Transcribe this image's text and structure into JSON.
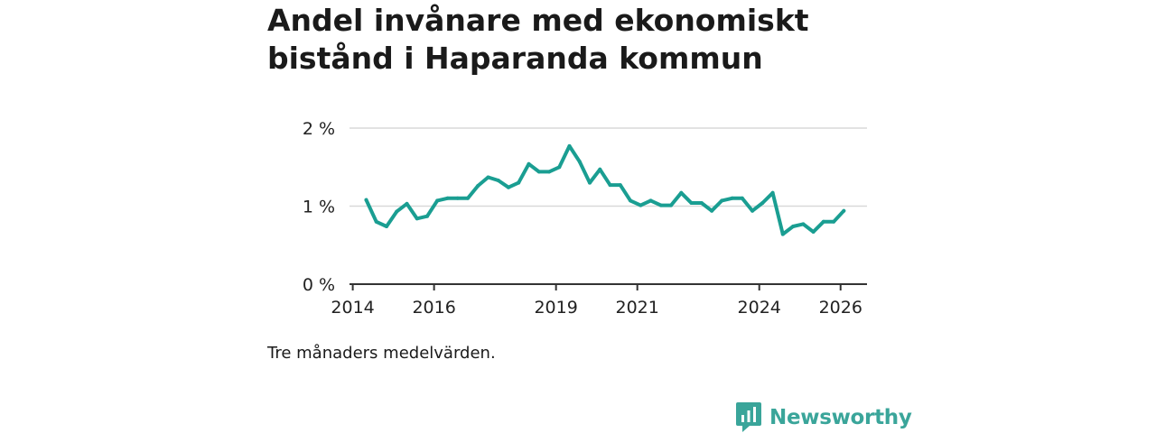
{
  "title": "Andel invånare med ekonomiskt bistånd i Haparanda kommun",
  "footnote": "Tre månaders medelvärden.",
  "brand": {
    "name": "Newsworthy",
    "icon": "newsworthy-logo-icon",
    "color": "#3aa59a"
  },
  "chart_data": {
    "type": "line",
    "title": "Andel invånare med ekonomiskt bistånd i Haparanda kommun",
    "xlabel": "",
    "ylabel": "",
    "series_color": "#1a9e92",
    "x_ticks": [
      {
        "value": 2014.0,
        "label": "2014"
      },
      {
        "value": 2016.0,
        "label": "2016"
      },
      {
        "value": 2019.0,
        "label": "2019"
      },
      {
        "value": 2021.0,
        "label": "2021"
      },
      {
        "value": 2024.0,
        "label": "2024"
      },
      {
        "value": 2026.0,
        "label": "2026"
      }
    ],
    "y_ticks": [
      {
        "value": 0,
        "label": "0 %"
      },
      {
        "value": 1,
        "label": "1 %"
      },
      {
        "value": 2,
        "label": "2 %"
      }
    ],
    "xlim": [
      2013.92,
      2026.65
    ],
    "ylim": [
      0,
      2
    ],
    "grid": true,
    "series": [
      {
        "name": "Andel invånare med ekonomiskt bistånd",
        "x": [
          2014.33,
          2014.58,
          2014.83,
          2015.08,
          2015.33,
          2015.58,
          2015.83,
          2016.08,
          2016.33,
          2016.58,
          2016.83,
          2017.08,
          2017.33,
          2017.58,
          2017.83,
          2018.08,
          2018.33,
          2018.58,
          2018.83,
          2019.08,
          2019.33,
          2019.58,
          2019.83,
          2020.08,
          2020.33,
          2020.58,
          2020.83,
          2021.08,
          2021.33,
          2021.58,
          2021.83,
          2022.08,
          2022.33,
          2022.58,
          2022.83,
          2023.08,
          2023.33,
          2023.58,
          2023.83,
          2024.08,
          2024.33,
          2024.58,
          2024.83,
          2025.08,
          2025.33,
          2025.58,
          2025.83,
          2026.08
        ],
        "values": [
          1.08,
          0.8,
          0.74,
          0.93,
          1.03,
          0.84,
          0.87,
          1.07,
          1.1,
          1.1,
          1.1,
          1.26,
          1.37,
          1.33,
          1.24,
          1.3,
          1.54,
          1.44,
          1.44,
          1.5,
          1.77,
          1.57,
          1.3,
          1.47,
          1.27,
          1.27,
          1.07,
          1.01,
          1.07,
          1.01,
          1.01,
          1.17,
          1.04,
          1.04,
          0.94,
          1.07,
          1.1,
          1.1,
          0.94,
          1.04,
          1.17,
          0.64,
          0.74,
          0.77,
          0.67,
          0.8,
          0.8,
          0.94
        ]
      }
    ]
  }
}
